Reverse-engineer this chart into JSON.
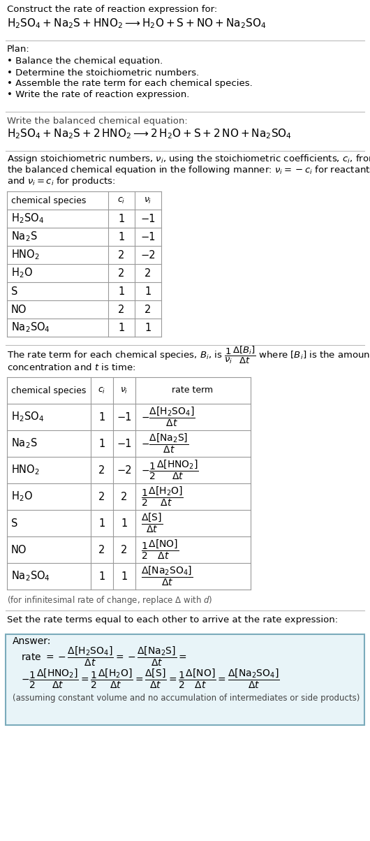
{
  "title_line1": "Construct the rate of reaction expression for:",
  "reaction_unbalanced": "$\\mathrm{H_2SO_4 + Na_2S + HNO_2 \\longrightarrow H_2O + S + NO + Na_2SO_4}$",
  "plan_header": "Plan:",
  "plan_items": [
    "• Balance the chemical equation.",
    "• Determine the stoichiometric numbers.",
    "• Assemble the rate term for each chemical species.",
    "• Write the rate of reaction expression."
  ],
  "balanced_header": "Write the balanced chemical equation:",
  "reaction_balanced": "$\\mathrm{H_2SO_4 + Na_2S + 2\\,HNO_2 \\longrightarrow 2\\,H_2O + S + 2\\,NO + Na_2SO_4}$",
  "stoich_intro1": "Assign stoichiometric numbers, $\\nu_i$, using the stoichiometric coefficients, $c_i$, from",
  "stoich_intro2": "the balanced chemical equation in the following manner: $\\nu_i = -c_i$ for reactants",
  "stoich_intro3": "and $\\nu_i = c_i$ for products:",
  "table1_headers": [
    "chemical species",
    "$c_i$",
    "$\\nu_i$"
  ],
  "table1_rows": [
    [
      "$\\mathrm{H_2SO_4}$",
      "1",
      "−1"
    ],
    [
      "$\\mathrm{Na_2S}$",
      "1",
      "−1"
    ],
    [
      "$\\mathrm{HNO_2}$",
      "2",
      "−2"
    ],
    [
      "$\\mathrm{H_2O}$",
      "2",
      "2"
    ],
    [
      "S",
      "1",
      "1"
    ],
    [
      "NO",
      "2",
      "2"
    ],
    [
      "$\\mathrm{Na_2SO_4}$",
      "1",
      "1"
    ]
  ],
  "rate_intro1": "The rate term for each chemical species, $B_i$, is $\\dfrac{1}{\\nu_i}\\dfrac{\\Delta[B_i]}{\\Delta t}$ where $[B_i]$ is the amount",
  "rate_intro2": "concentration and $t$ is time:",
  "table2_headers": [
    "chemical species",
    "$c_i$",
    "$\\nu_i$",
    "rate term"
  ],
  "table2_rows": [
    [
      "$\\mathrm{H_2SO_4}$",
      "1",
      "−1",
      "$-\\dfrac{\\Delta[\\mathrm{H_2SO_4}]}{\\Delta t}$"
    ],
    [
      "$\\mathrm{Na_2S}$",
      "1",
      "−1",
      "$-\\dfrac{\\Delta[\\mathrm{Na_2S}]}{\\Delta t}$"
    ],
    [
      "$\\mathrm{HNO_2}$",
      "2",
      "−2",
      "$-\\dfrac{1}{2}\\dfrac{\\Delta[\\mathrm{HNO_2}]}{\\Delta t}$"
    ],
    [
      "$\\mathrm{H_2O}$",
      "2",
      "2",
      "$\\dfrac{1}{2}\\dfrac{\\Delta[\\mathrm{H_2O}]}{\\Delta t}$"
    ],
    [
      "S",
      "1",
      "1",
      "$\\dfrac{\\Delta[\\mathrm{S}]}{\\Delta t}$"
    ],
    [
      "NO",
      "2",
      "2",
      "$\\dfrac{1}{2}\\dfrac{\\Delta[\\mathrm{NO}]}{\\Delta t}$"
    ],
    [
      "$\\mathrm{Na_2SO_4}$",
      "1",
      "1",
      "$\\dfrac{\\Delta[\\mathrm{Na_2SO_4}]}{\\Delta t}$"
    ]
  ],
  "infinitesimal_note": "(for infinitesimal rate of change, replace Δ with $d$)",
  "set_rate_text": "Set the rate terms equal to each other to arrive at the rate expression:",
  "answer_label": "Answer:",
  "answer_note": "(assuming constant volume and no accumulation of intermediates or side products)",
  "bg_color": "#ffffff",
  "text_color": "#000000",
  "table_border_color": "#999999",
  "answer_box_color": "#e8f4f8",
  "answer_box_border": "#7aabbb",
  "separator_color": "#bbbbbb"
}
